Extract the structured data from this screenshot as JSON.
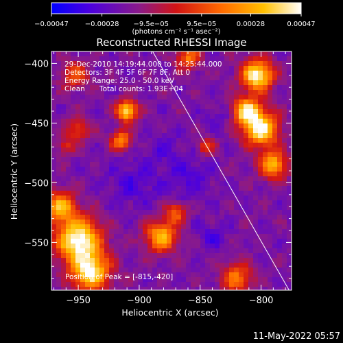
{
  "chart_data": {
    "type": "heatmap",
    "title": "Reconstructed RHESSI Image",
    "xlabel": "Heliocentric X (arcsec)",
    "ylabel": "Heliocentric Y (arcsec)",
    "xlim": [
      -972,
      -775
    ],
    "ylim": [
      -590,
      -390
    ],
    "x_ticks": [
      -950,
      -900,
      -850,
      -800
    ],
    "y_ticks": [
      -550,
      -500,
      -450,
      -400
    ],
    "x_tick_labels": [
      "−950",
      "−900",
      "−850",
      "−800"
    ],
    "y_tick_labels": [
      "−550",
      "−500",
      "−450",
      "−400"
    ],
    "colorbar": {
      "range": [
        -0.00047,
        0.00047
      ],
      "tick_values": [
        -0.00047,
        -0.00028,
        -9.5e-05,
        9.5e-05,
        0.00028,
        0.00047
      ],
      "tick_labels": [
        "−0.00047",
        "−0.00028",
        "−9.5e−05",
        "9.5e−05",
        "0.00028",
        "0.00047"
      ],
      "unit_label": "(photons cm⁻² s⁻¹ asec⁻²)",
      "colormap": "rainbow-blue-purple-red-orange-yellow-white",
      "colors": [
        "#0000ff",
        "#4a00e0",
        "#8a1a8a",
        "#d21414",
        "#ff6a00",
        "#ffc000",
        "#ffffff"
      ]
    },
    "info": {
      "time_range": "29-Dec-2010 14:19:44.000 to 14:25:44.000",
      "detectors": "Detectors: 3F 4F 5F 6F 7F 8F, Att 0",
      "energy_range": "Energy Range: 25.0 - 50.0 keV",
      "clean_label": "Clean",
      "total_counts": "Total counts: 1.93E+04"
    },
    "peak_label": "Position of Peak = [-815,-420]",
    "peak_position": [
      -815,
      -420
    ],
    "limb_line": {
      "from": [
        -889,
        -390
      ],
      "to": [
        -777,
        -590
      ]
    },
    "bright_sources": [
      {
        "x": -803,
        "y": -410,
        "sigma": 9,
        "amp": 1.0
      },
      {
        "x": -800,
        "y": -455,
        "sigma": 10,
        "amp": 0.95
      },
      {
        "x": -812,
        "y": -440,
        "sigma": 8,
        "amp": 0.85
      },
      {
        "x": -790,
        "y": -485,
        "sigma": 8,
        "amp": 0.75
      },
      {
        "x": -950,
        "y": -548,
        "sigma": 13,
        "amp": 1.0
      },
      {
        "x": -940,
        "y": -575,
        "sigma": 11,
        "amp": 0.9
      },
      {
        "x": -965,
        "y": -520,
        "sigma": 9,
        "amp": 0.7
      },
      {
        "x": -910,
        "y": -440,
        "sigma": 6,
        "amp": 0.9
      },
      {
        "x": -915,
        "y": -465,
        "sigma": 6,
        "amp": 0.6
      },
      {
        "x": -882,
        "y": -545,
        "sigma": 9,
        "amp": 0.75
      },
      {
        "x": -870,
        "y": -525,
        "sigma": 6,
        "amp": 0.5
      },
      {
        "x": -953,
        "y": -410,
        "sigma": 8,
        "amp": 0.45
      },
      {
        "x": -860,
        "y": -395,
        "sigma": 7,
        "amp": 0.55
      },
      {
        "x": -950,
        "y": -455,
        "sigma": 7,
        "amp": 0.4
      },
      {
        "x": -845,
        "y": -470,
        "sigma": 5,
        "amp": 0.4
      },
      {
        "x": -820,
        "y": -580,
        "sigma": 9,
        "amp": 0.55
      },
      {
        "x": -960,
        "y": -470,
        "sigma": 5,
        "amp": 0.35
      }
    ],
    "dark_sources": [
      {
        "x": -905,
        "y": -500,
        "sigma": 14,
        "amp": 0.6
      },
      {
        "x": -860,
        "y": -495,
        "sigma": 14,
        "amp": 0.55
      },
      {
        "x": -840,
        "y": -545,
        "sigma": 8,
        "amp": 0.55
      },
      {
        "x": -880,
        "y": -470,
        "sigma": 9,
        "amp": 0.45
      },
      {
        "x": -835,
        "y": -445,
        "sigma": 8,
        "amp": 0.4
      }
    ]
  },
  "footer": {
    "date": "11-May-2022 05:57"
  }
}
